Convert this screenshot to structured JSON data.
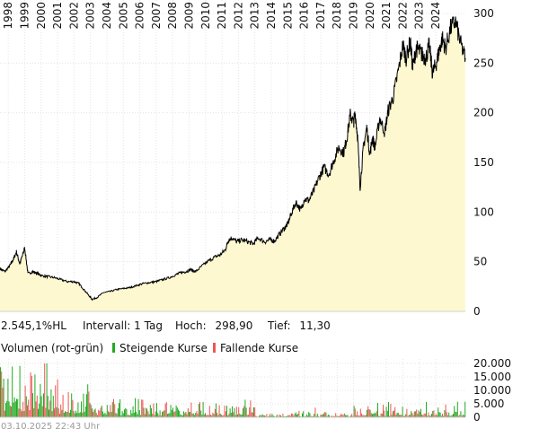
{
  "chart_data": [
    {
      "type": "line",
      "fill": "area",
      "x_ticks": [
        "1998",
        "1999",
        "2000",
        "2001",
        "2002",
        "2003",
        "2004",
        "2005",
        "2006",
        "2007",
        "2008",
        "2009",
        "2010",
        "2011",
        "2012",
        "2013",
        "2014",
        "2015",
        "2016",
        "2017",
        "2018",
        "2019",
        "2020",
        "2021",
        "2022",
        "2023",
        "2024"
      ],
      "y_ticks": [
        "0",
        "50",
        "100",
        "150",
        "200",
        "250",
        "300"
      ],
      "ylim": [
        0,
        300
      ],
      "xlim": [
        1997.5,
        2025.8
      ],
      "grid": true,
      "axis_side": "right",
      "series": [
        {
          "color": "#000000",
          "fill_color": "#fdf8d0",
          "x": [
            1997.5,
            1997.8,
            1998.1,
            1998.3,
            1998.5,
            1998.7,
            1998.9,
            1999.0,
            1999.2,
            1999.5,
            1999.8,
            2000.0,
            2000.4,
            2000.8,
            2001.2,
            2001.6,
            2002.0,
            2002.3,
            2002.6,
            2002.9,
            2003.1,
            2003.4,
            2003.8,
            2004.2,
            2004.6,
            2005.0,
            2005.4,
            2005.8,
            2006.2,
            2006.6,
            2007.0,
            2007.4,
            2007.8,
            2008.2,
            2008.5,
            2008.8,
            2009.1,
            2009.4,
            2009.8,
            2010.2,
            2010.6,
            2010.9,
            2011.2,
            2011.4,
            2011.6,
            2011.9,
            2012.2,
            2012.6,
            2012.9,
            2013.2,
            2013.6,
            2013.9,
            2014.2,
            2014.5,
            2014.8,
            2015.0,
            2015.2,
            2015.5,
            2015.8,
            2016.0,
            2016.3,
            2016.6,
            2016.9,
            2017.2,
            2017.5,
            2017.8,
            2018.1,
            2018.4,
            2018.6,
            2018.8,
            2019.0,
            2019.1,
            2019.25,
            2019.4,
            2019.6,
            2019.8,
            2020.0,
            2020.15,
            2020.3,
            2020.6,
            2020.9,
            2021.1,
            2021.4,
            2021.7,
            2022.0,
            2022.2,
            2022.45,
            2022.6,
            2022.8,
            2023.0,
            2023.2,
            2023.4,
            2023.6,
            2023.8,
            2024.0,
            2024.2,
            2024.4,
            2024.6,
            2024.9,
            2025.2,
            2025.5,
            2025.8
          ],
          "values": [
            43,
            40,
            46,
            52,
            60,
            48,
            58,
            64,
            38,
            40,
            38,
            36,
            35,
            34,
            32,
            30,
            30,
            28,
            22,
            16,
            12,
            14,
            19,
            20,
            22,
            23,
            24,
            26,
            28,
            29,
            30,
            32,
            34,
            37,
            39,
            40,
            42,
            40,
            46,
            51,
            55,
            57,
            62,
            72,
            74,
            70,
            72,
            70,
            68,
            74,
            70,
            72,
            71,
            78,
            84,
            88,
            98,
            110,
            102,
            113,
            112,
            122,
            135,
            145,
            138,
            152,
            165,
            160,
            175,
            198,
            190,
            200,
            175,
            125,
            165,
            185,
            158,
            175,
            165,
            195,
            180,
            202,
            215,
            240,
            268,
            255,
            272,
            245,
            265,
            262,
            258,
            255,
            268,
            240,
            248,
            262,
            275,
            265,
            285,
            292,
            270,
            255
          ]
        }
      ]
    },
    {
      "type": "bar",
      "title": "Volumen (rot-grün)",
      "y_ticks": [
        "0",
        "5.000",
        "10.000",
        "15.000",
        "20.000"
      ],
      "ylim": [
        0,
        20000
      ],
      "grid": true,
      "axis_side": "right",
      "series": [
        {
          "name": "Steigende Kurse",
          "color": "#22aa22"
        },
        {
          "name": "Fallende Kurse",
          "color": "#ee5555"
        }
      ]
    }
  ],
  "info": {
    "performance": "2.545,1%HL",
    "interval_label": "Intervall:",
    "interval_value": "1 Tag",
    "high_label": "Hoch:",
    "high_value": "298,90",
    "low_label": "Tief:",
    "low_value": "11,30"
  },
  "timestamp": "03.10.2025 22:43 Uhr"
}
